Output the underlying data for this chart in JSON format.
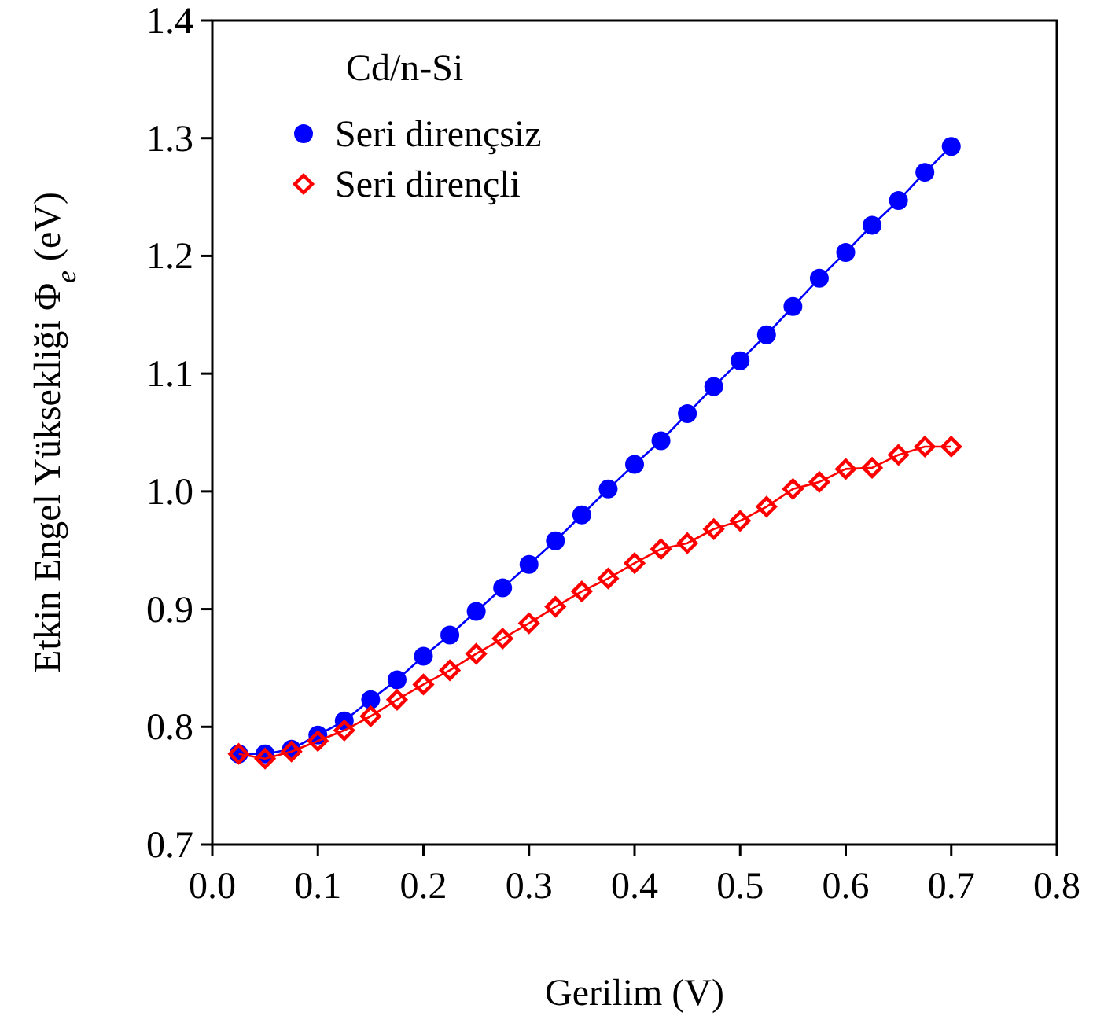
{
  "chart_data": {
    "type": "line",
    "xlabel": "Gerilim (V)",
    "ylabel": "Etkin Engel Yüksekliği Φ$_{e}$ (eV)",
    "legend_title": "Cd/n-Si",
    "legend": "top left",
    "grid": false,
    "x": [
      0.025,
      0.05,
      0.075,
      0.1,
      0.125,
      0.15,
      0.175,
      0.2,
      0.225,
      0.25,
      0.275,
      0.3,
      0.325,
      0.35,
      0.375,
      0.4,
      0.425,
      0.45,
      0.475,
      0.5,
      0.525,
      0.55,
      0.575,
      0.6,
      0.625,
      0.65,
      0.675,
      0.7
    ],
    "xlim": [
      0,
      0.8
    ],
    "xticks": [
      {
        "value": 0,
        "label": "0.0"
      },
      0.1,
      0.2,
      0.3,
      0.4,
      0.5,
      0.6,
      0.7,
      0.8
    ],
    "ylim": [
      0.7,
      1.4
    ],
    "yticks": [
      0.7,
      0.8,
      0.9,
      {
        "value": 1,
        "label": "1.0"
      },
      1.1,
      1.2,
      1.3,
      1.4
    ],
    "series": [
      {
        "name": "Seri dirençsiz",
        "color": "#0000ff",
        "marker": "circle",
        "line_style": "solid",
        "values": [
          0.777,
          0.777,
          0.781,
          0.793,
          0.805,
          0.823,
          0.84,
          0.86,
          0.878,
          0.898,
          0.918,
          0.938,
          0.958,
          0.98,
          1.002,
          1.023,
          1.043,
          1.066,
          1.089,
          1.111,
          1.133,
          1.157,
          1.181,
          1.203,
          1.226,
          1.247,
          1.271,
          1.293
        ]
      },
      {
        "name": "Seri dirençli",
        "color": "#ff0000",
        "marker": "diamond",
        "line_style": "solid",
        "values": [
          0.777,
          0.773,
          0.779,
          0.788,
          0.797,
          0.809,
          0.823,
          0.836,
          0.848,
          0.862,
          0.875,
          0.888,
          0.902,
          0.915,
          0.926,
          0.939,
          0.951,
          0.956,
          0.968,
          0.975,
          0.987,
          1.002,
          1.008,
          1.019,
          1.02,
          1.031,
          1.038,
          1.038
        ]
      }
    ]
  }
}
